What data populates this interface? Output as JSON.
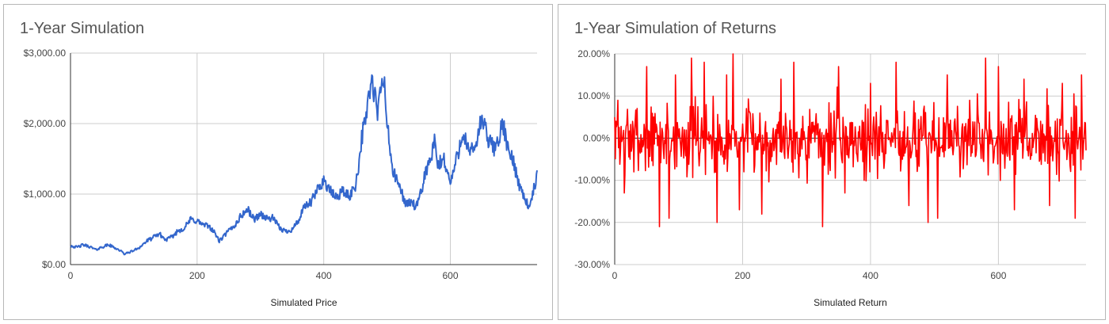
{
  "charts": [
    {
      "type": "line",
      "title": "1-Year Simulation",
      "xlabel": "Simulated Price",
      "ylabel": "",
      "xlim": [
        0,
        737
      ],
      "ylim": [
        0,
        3000
      ],
      "x_ticks": [
        0,
        200,
        400,
        600
      ],
      "y_ticks": [
        "$0.00",
        "$1,000.00",
        "$2,000.00",
        "$3,000.00"
      ],
      "y_tick_values": [
        0,
        1000,
        2000,
        3000
      ],
      "grid": true,
      "legend": "none",
      "color": "#3366cc",
      "series": [
        {
          "keypoints": [
            [
              0,
              270
            ],
            [
              10,
              245
            ],
            [
              20,
              280
            ],
            [
              30,
              255
            ],
            [
              40,
              210
            ],
            [
              50,
              250
            ],
            [
              60,
              280
            ],
            [
              70,
              240
            ],
            [
              80,
              190
            ],
            [
              85,
              150
            ],
            [
              90,
              165
            ],
            [
              100,
              200
            ],
            [
              110,
              250
            ],
            [
              120,
              330
            ],
            [
              130,
              380
            ],
            [
              140,
              440
            ],
            [
              150,
              350
            ],
            [
              160,
              390
            ],
            [
              170,
              480
            ],
            [
              180,
              520
            ],
            [
              190,
              640
            ],
            [
              200,
              620
            ],
            [
              210,
              560
            ],
            [
              220,
              540
            ],
            [
              230,
              420
            ],
            [
              235,
              330
            ],
            [
              240,
              380
            ],
            [
              250,
              480
            ],
            [
              260,
              560
            ],
            [
              270,
              700
            ],
            [
              280,
              780
            ],
            [
              290,
              640
            ],
            [
              300,
              720
            ],
            [
              310,
              650
            ],
            [
              320,
              660
            ],
            [
              330,
              520
            ],
            [
              340,
              470
            ],
            [
              350,
              500
            ],
            [
              360,
              620
            ],
            [
              370,
              820
            ],
            [
              380,
              880
            ],
            [
              390,
              1060
            ],
            [
              400,
              1200
            ],
            [
              410,
              1040
            ],
            [
              420,
              950
            ],
            [
              430,
              1050
            ],
            [
              440,
              960
            ],
            [
              450,
              1120
            ],
            [
              455,
              1400
            ],
            [
              460,
              1800
            ],
            [
              465,
              2000
            ],
            [
              470,
              2350
            ],
            [
              475,
              2550
            ],
            [
              480,
              2450
            ],
            [
              485,
              2100
            ],
            [
              490,
              2500
            ],
            [
              495,
              2650
            ],
            [
              500,
              2000
            ],
            [
              505,
              1600
            ],
            [
              510,
              1300
            ],
            [
              520,
              1100
            ],
            [
              530,
              850
            ],
            [
              540,
              900
            ],
            [
              545,
              780
            ],
            [
              555,
              1050
            ],
            [
              560,
              1300
            ],
            [
              570,
              1500
            ],
            [
              575,
              1750
            ],
            [
              580,
              1400
            ],
            [
              590,
              1500
            ],
            [
              600,
              1150
            ],
            [
              610,
              1500
            ],
            [
              620,
              1900
            ],
            [
              630,
              1550
            ],
            [
              640,
              1700
            ],
            [
              650,
              2080
            ],
            [
              660,
              1750
            ],
            [
              670,
              1650
            ],
            [
              680,
              1900
            ],
            [
              685,
              1950
            ],
            [
              690,
              1650
            ],
            [
              700,
              1450
            ],
            [
              710,
              1100
            ],
            [
              720,
              900
            ],
            [
              725,
              780
            ],
            [
              730,
              1000
            ],
            [
              737,
              1250
            ]
          ],
          "volatility": 0.035
        }
      ]
    },
    {
      "type": "line",
      "title": "1-Year Simulation of Returns",
      "xlabel": "Simulated Return",
      "ylabel": "",
      "xlim": [
        0,
        737
      ],
      "ylim": [
        -0.3,
        0.2
      ],
      "x_ticks": [
        0,
        200,
        400,
        600
      ],
      "y_ticks": [
        "-30.00%",
        "-20.00%",
        "-10.00%",
        "0.00%",
        "10.00%",
        "20.00%"
      ],
      "y_tick_values": [
        -0.3,
        -0.2,
        -0.1,
        0.0,
        0.1,
        0.2
      ],
      "grid": true,
      "legend": "none",
      "color": "#ff0000",
      "series": [
        {
          "baseline_std": 0.06,
          "spikes": [
            [
              5,
              0.09
            ],
            [
              15,
              -0.13
            ],
            [
              30,
              -0.08
            ],
            [
              50,
              0.17
            ],
            [
              70,
              -0.21
            ],
            [
              85,
              -0.19
            ],
            [
              95,
              0.15
            ],
            [
              120,
              0.19
            ],
            [
              140,
              0.18
            ],
            [
              160,
              -0.2
            ],
            [
              175,
              0.15
            ],
            [
              185,
              0.2
            ],
            [
              195,
              -0.17
            ],
            [
              230,
              -0.18
            ],
            [
              260,
              0.14
            ],
            [
              280,
              0.18
            ],
            [
              325,
              -0.21
            ],
            [
              350,
              0.17
            ],
            [
              360,
              -0.13
            ],
            [
              390,
              -0.1
            ],
            [
              400,
              0.13
            ],
            [
              440,
              0.18
            ],
            [
              460,
              -0.16
            ],
            [
              490,
              -0.2
            ],
            [
              505,
              -0.19
            ],
            [
              520,
              0.15
            ],
            [
              580,
              0.19
            ],
            [
              600,
              0.17
            ],
            [
              625,
              -0.17
            ],
            [
              640,
              0.14
            ],
            [
              680,
              -0.16
            ],
            [
              700,
              0.13
            ],
            [
              720,
              -0.19
            ],
            [
              730,
              0.15
            ]
          ]
        }
      ]
    }
  ]
}
